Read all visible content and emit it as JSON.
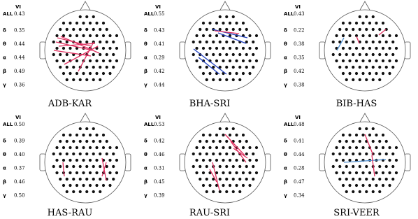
{
  "bands": [
    "ALL",
    "δ",
    "θ",
    "α",
    "β",
    "γ"
  ],
  "vi_label": "VI",
  "panels": [
    {
      "title": "ADB-KAR",
      "values": [
        "0.43",
        "0.35",
        "0.44",
        "0.44",
        "0.49",
        "0.36"
      ]
    },
    {
      "title": "BHA-SRI",
      "values": [
        "0.55",
        "0.43",
        "0.41",
        "0.29",
        "0.42",
        "0.44"
      ]
    },
    {
      "title": "BIB-HAS",
      "values": [
        "0.43",
        "0.22",
        "0.38",
        "0.35",
        "0.42",
        "0.38"
      ]
    },
    {
      "title": "HAS-RAU",
      "values": [
        "0.50",
        "0.39",
        "0.40",
        "0.37",
        "0.46",
        "0.50"
      ]
    },
    {
      "title": "RAU-SRI",
      "values": [
        "0.53",
        "0.42",
        "0.46",
        "0.31",
        "0.45",
        "0.39"
      ]
    },
    {
      "title": "SRI-VEER",
      "values": [
        "0.48",
        "0.41",
        "0.44",
        "0.28",
        "0.47",
        "0.34"
      ]
    }
  ]
}
